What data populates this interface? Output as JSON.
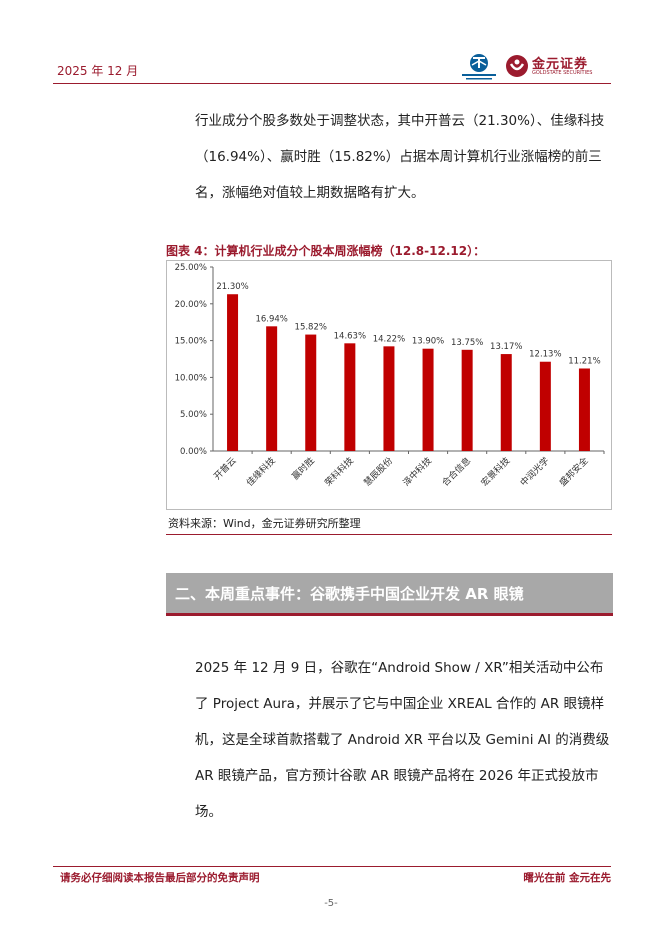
{
  "header": {
    "date": "2025 年 12 月",
    "logo_right_cn": "金元证券",
    "logo_right_en": "GOLDSTATE SECURITIES"
  },
  "body": {
    "para1": "行业成分个股多数处于调整状态，其中开普云（21.30%）、佳缘科技（16.94%）、赢时胜（15.82%）占据本周计算机行业涨幅榜的前三名，涨幅绝对值较上期数据略有扩大。",
    "chart_title": "图表 4：计算机行业成分个股本周涨幅榜（12.8-12.12）：",
    "source": "资料来源：Wind，金元证券研究所整理",
    "section_title": "二、本周重点事件：谷歌携手中国企业开发 AR 眼镜",
    "para2": "2025 年 12 月 9 日，谷歌在“Android Show / XR”相关活动中公布了 Project Aura，并展示了它与中国企业 XREAL 合作的 AR 眼镜样机，这是全球首款搭载了 Android XR 平台以及 Gemini AI 的消费级 AR 眼镜产品，官方预计谷歌 AR 眼镜产品将在 2026 年正式投放市场。"
  },
  "footer": {
    "left": "请务必仔细阅读本报告最后部分的免责声明",
    "right": "曙光在前 金元在先",
    "page": "-5-"
  },
  "colors": {
    "accent": "#9b1b2e",
    "bar": "#c00000",
    "section_bg": "#a8a8a8"
  },
  "chart_data": {
    "type": "bar",
    "categories": [
      "开普云",
      "佳缘科技",
      "赢时胜",
      "荣科科技",
      "慧辰股份",
      "泽中科技",
      "合合信息",
      "宏景科技",
      "中润光学",
      "盛邦安全"
    ],
    "values": [
      21.3,
      16.94,
      15.82,
      14.63,
      14.22,
      13.9,
      13.75,
      13.17,
      12.13,
      11.21
    ],
    "value_labels": [
      "21.30%",
      "16.94%",
      "15.82%",
      "14.63%",
      "14.22%",
      "13.90%",
      "13.75%",
      "13.17%",
      "12.13%",
      "11.21%"
    ],
    "y_ticks": [
      "0.00%",
      "5.00%",
      "10.00%",
      "15.00%",
      "20.00%",
      "25.00%"
    ],
    "ylim": [
      0,
      25
    ],
    "grid": false
  }
}
